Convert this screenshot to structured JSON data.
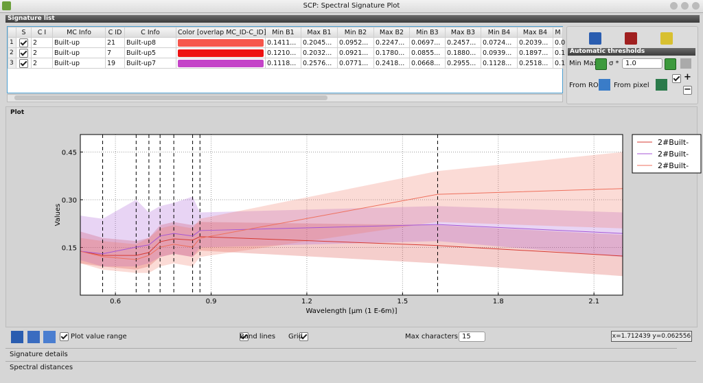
{
  "window": {
    "title": "SCP: Spectral Signature Plot"
  },
  "signature_list": {
    "title": "Signature list",
    "headers": [
      "S",
      "C I",
      "MC Info",
      "C ID",
      "C Info",
      "Color [overlap MC_ID-C_ID]",
      "Min B1",
      "Max B1",
      "Min B2",
      "Max B2",
      "Min B3",
      "Max B3",
      "Min B4",
      "Max B4",
      "M"
    ],
    "rows": [
      {
        "number": "1",
        "mc_id": "2",
        "mc_info": "Built-up",
        "c_id": "21",
        "c_info": "Built-up8",
        "color": "#f6574c",
        "values": [
          "0.1411...",
          "0.2045...",
          "0.0952...",
          "0.2247...",
          "0.0697...",
          "0.2457...",
          "0.0724...",
          "0.2039...",
          "0.0"
        ]
      },
      {
        "number": "2",
        "mc_id": "2",
        "mc_info": "Built-up",
        "c_id": "7",
        "c_info": "Built-up5",
        "color": "#ee1212",
        "values": [
          "0.1210...",
          "0.2032...",
          "0.0921...",
          "0.1780...",
          "0.0855...",
          "0.1880...",
          "0.0939...",
          "0.1897...",
          "0.1"
        ]
      },
      {
        "number": "3",
        "mc_id": "2",
        "mc_info": "Built-up",
        "c_id": "19",
        "c_info": "Built-up7",
        "color": "#c444c8",
        "values": [
          "0.1118...",
          "0.2576...",
          "0.0771...",
          "0.2418...",
          "0.0668...",
          "0.2955...",
          "0.1128...",
          "0.2518...",
          "0.1"
        ]
      }
    ]
  },
  "thresholds": {
    "title": "Automatic  thresholds",
    "min_max": "Min Max",
    "sigma": "σ *",
    "sigma_value": "1.0",
    "from_roi": "From ROI",
    "from_pixel": "From pixel",
    "plus": "+",
    "minus": "−"
  },
  "plot": {
    "title": "Plot",
    "type": "line",
    "xlabel": "Wavelength [µm (1 E-6m)]",
    "ylabel": "Values",
    "x": [
      0.49,
      0.56,
      0.665,
      0.705,
      0.74,
      0.783,
      0.842,
      0.865,
      1.61,
      2.19
    ],
    "xlim": [
      0.49,
      2.19
    ],
    "ylim": [
      0,
      0.505
    ],
    "xticks": [
      0.6,
      0.9,
      1.2,
      1.5,
      1.8,
      2.1
    ],
    "yticks": [
      0.15,
      {
        "value": 0.3,
        "label": "0.30"
      },
      0.45
    ],
    "grid": true,
    "band_lines": true,
    "value_range": true,
    "legend": "upper right",
    "series": [
      {
        "name": "2#Built-",
        "color": "#d63a32",
        "values": [
          0.138,
          0.125,
          0.125,
          0.134,
          0.168,
          0.177,
          0.173,
          0.184,
          0.156,
          0.123
        ],
        "range_min": [
          0.1,
          0.09,
          0.08,
          0.09,
          0.12,
          0.13,
          0.12,
          0.14,
          0.1,
          0.06
        ],
        "range_max": [
          0.2,
          0.18,
          0.17,
          0.18,
          0.22,
          0.23,
          0.22,
          0.23,
          0.22,
          0.19
        ]
      },
      {
        "name": "2#Built-",
        "color": "#a455d4",
        "values": [
          0.138,
          0.13,
          0.151,
          0.158,
          0.186,
          0.194,
          0.186,
          0.203,
          0.222,
          0.194
        ],
        "range_min": [
          0.11,
          0.09,
          0.09,
          0.1,
          0.12,
          0.13,
          0.12,
          0.15,
          0.17,
          0.12
        ],
        "range_max": [
          0.25,
          0.24,
          0.3,
          0.26,
          0.28,
          0.29,
          0.31,
          0.26,
          0.28,
          0.26
        ]
      },
      {
        "name": "2#Built-",
        "color": "#ee6f5c",
        "values": [
          0.138,
          0.121,
          0.112,
          0.125,
          0.151,
          0.16,
          0.151,
          0.179,
          0.317,
          0.335
        ],
        "range_min": [
          0.1,
          0.08,
          0.07,
          0.07,
          0.09,
          0.1,
          0.09,
          0.12,
          0.23,
          0.21
        ],
        "range_max": [
          0.18,
          0.17,
          0.16,
          0.18,
          0.21,
          0.22,
          0.21,
          0.24,
          0.39,
          0.45
        ]
      }
    ]
  },
  "controls": {
    "plot_value_range": "Plot value range",
    "band_lines": "Band lines",
    "grid": "Grid",
    "max_characters": "Max characters",
    "max_characters_value": "15",
    "cursor": "x=1.712439 y=0.062556"
  },
  "tabs": {
    "signature_details": "Signature details",
    "spectral_distances": "Spectral distances"
  }
}
